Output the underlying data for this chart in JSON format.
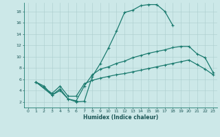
{
  "title": "",
  "xlabel": "Humidex (Indice chaleur)",
  "bg_color": "#cce8e8",
  "line_color": "#1a7a6e",
  "grid_color": "#aacccc",
  "xlim": [
    -0.5,
    23.5
  ],
  "ylim": [
    1,
    19.5
  ],
  "xticks": [
    0,
    1,
    2,
    3,
    4,
    5,
    6,
    7,
    8,
    9,
    10,
    11,
    12,
    13,
    14,
    15,
    16,
    17,
    18,
    19,
    20,
    21,
    22,
    23
  ],
  "yticks": [
    2,
    4,
    6,
    8,
    10,
    12,
    14,
    16,
    18
  ],
  "curve1_x": [
    1,
    2,
    3,
    4,
    5,
    6,
    7,
    8,
    9,
    10,
    11,
    12,
    13,
    14,
    15,
    16,
    17,
    18
  ],
  "curve1_y": [
    5.5,
    4.8,
    3.2,
    4.0,
    2.5,
    2.0,
    2.1,
    6.5,
    8.8,
    11.5,
    14.5,
    17.8,
    18.2,
    19.0,
    19.2,
    19.2,
    18.0,
    15.5
  ],
  "curve2_x": [
    1,
    3,
    4,
    5,
    6,
    7,
    8,
    9,
    10,
    11,
    12,
    13,
    14,
    15,
    16,
    17,
    18,
    19,
    20,
    21,
    22,
    23
  ],
  "curve2_y": [
    5.5,
    3.2,
    4.3,
    2.5,
    2.2,
    4.8,
    6.8,
    7.8,
    8.2,
    8.8,
    9.2,
    9.8,
    10.2,
    10.6,
    10.9,
    11.2,
    11.6,
    11.8,
    11.8,
    10.5,
    9.8,
    7.2
  ],
  "curve3_x": [
    1,
    3,
    4,
    5,
    6,
    7,
    8,
    9,
    10,
    11,
    12,
    13,
    14,
    15,
    16,
    17,
    18,
    19,
    20,
    21,
    22,
    23
  ],
  "curve3_y": [
    5.5,
    3.5,
    4.8,
    3.0,
    3.0,
    5.2,
    5.8,
    6.2,
    6.5,
    6.8,
    7.0,
    7.3,
    7.6,
    7.9,
    8.2,
    8.5,
    8.8,
    9.1,
    9.4,
    8.6,
    7.8,
    6.8
  ],
  "tick_labelsize": 4.5,
  "xlabel_fontsize": 5.5,
  "lw": 0.9,
  "marker": "+",
  "markersize": 3.5,
  "markeredgewidth": 0.8
}
